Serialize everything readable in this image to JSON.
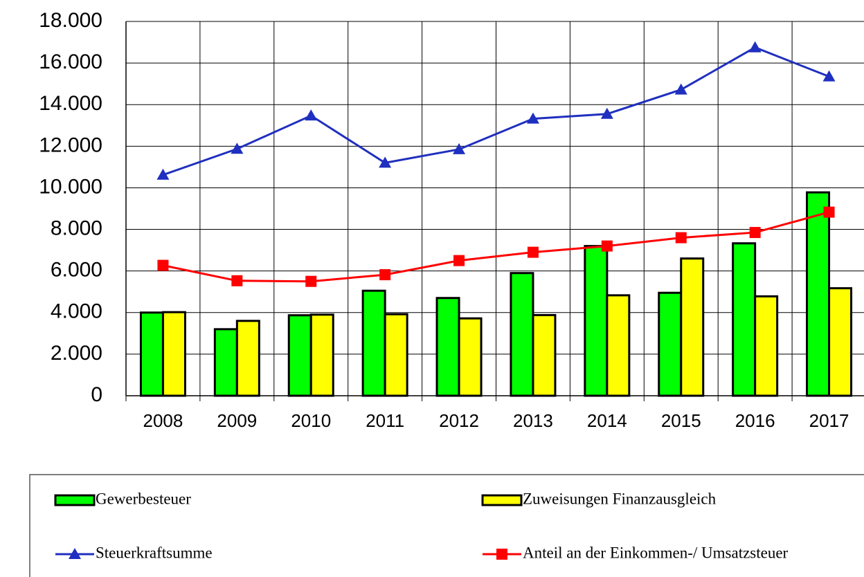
{
  "chart_data": {
    "type": "bar",
    "categories": [
      "2008",
      "2009",
      "2010",
      "2011",
      "2012",
      "2013",
      "2014",
      "2015",
      "2016",
      "2017"
    ],
    "series": [
      {
        "name": "Gewerbesteuer",
        "type": "bar",
        "color": "#00ff00",
        "values": [
          4000,
          3200,
          3870,
          5050,
          4700,
          5900,
          7200,
          4950,
          7330,
          9780
        ]
      },
      {
        "name": "Zuweisungen Finanzausgleich",
        "type": "bar",
        "color": "#ffff00",
        "values": [
          4020,
          3600,
          3900,
          3920,
          3720,
          3880,
          4830,
          6600,
          4780,
          5170
        ]
      },
      {
        "name": "Steuerkraftsumme",
        "type": "line",
        "marker": "triangle",
        "color": "#1f2fbf",
        "values": [
          10620,
          11870,
          13470,
          11200,
          11850,
          13320,
          13550,
          14720,
          16750,
          15350
        ]
      },
      {
        "name": "Anteil an der Einkommen-/ Umsatzsteuer",
        "type": "line",
        "marker": "square",
        "color": "#ff0000",
        "values": [
          6270,
          5530,
          5500,
          5820,
          6500,
          6900,
          7200,
          7600,
          7850,
          8830
        ]
      }
    ],
    "ylim": [
      0,
      18000
    ],
    "yticks": [
      0,
      {
        "value": 2000,
        "label": "2.000"
      },
      {
        "value": 4000,
        "label": "4.000"
      },
      {
        "value": 6000,
        "label": "6.000"
      },
      {
        "value": 8000,
        "label": "8.000"
      },
      {
        "value": 10000,
        "label": "10.000"
      },
      {
        "value": 12000,
        "label": "12.000"
      },
      {
        "value": 14000,
        "label": "14.000"
      },
      {
        "value": 16000,
        "label": "16.000"
      },
      {
        "value": 18000,
        "label": "18.000"
      }
    ],
    "grid": true,
    "legend": "bottom"
  }
}
